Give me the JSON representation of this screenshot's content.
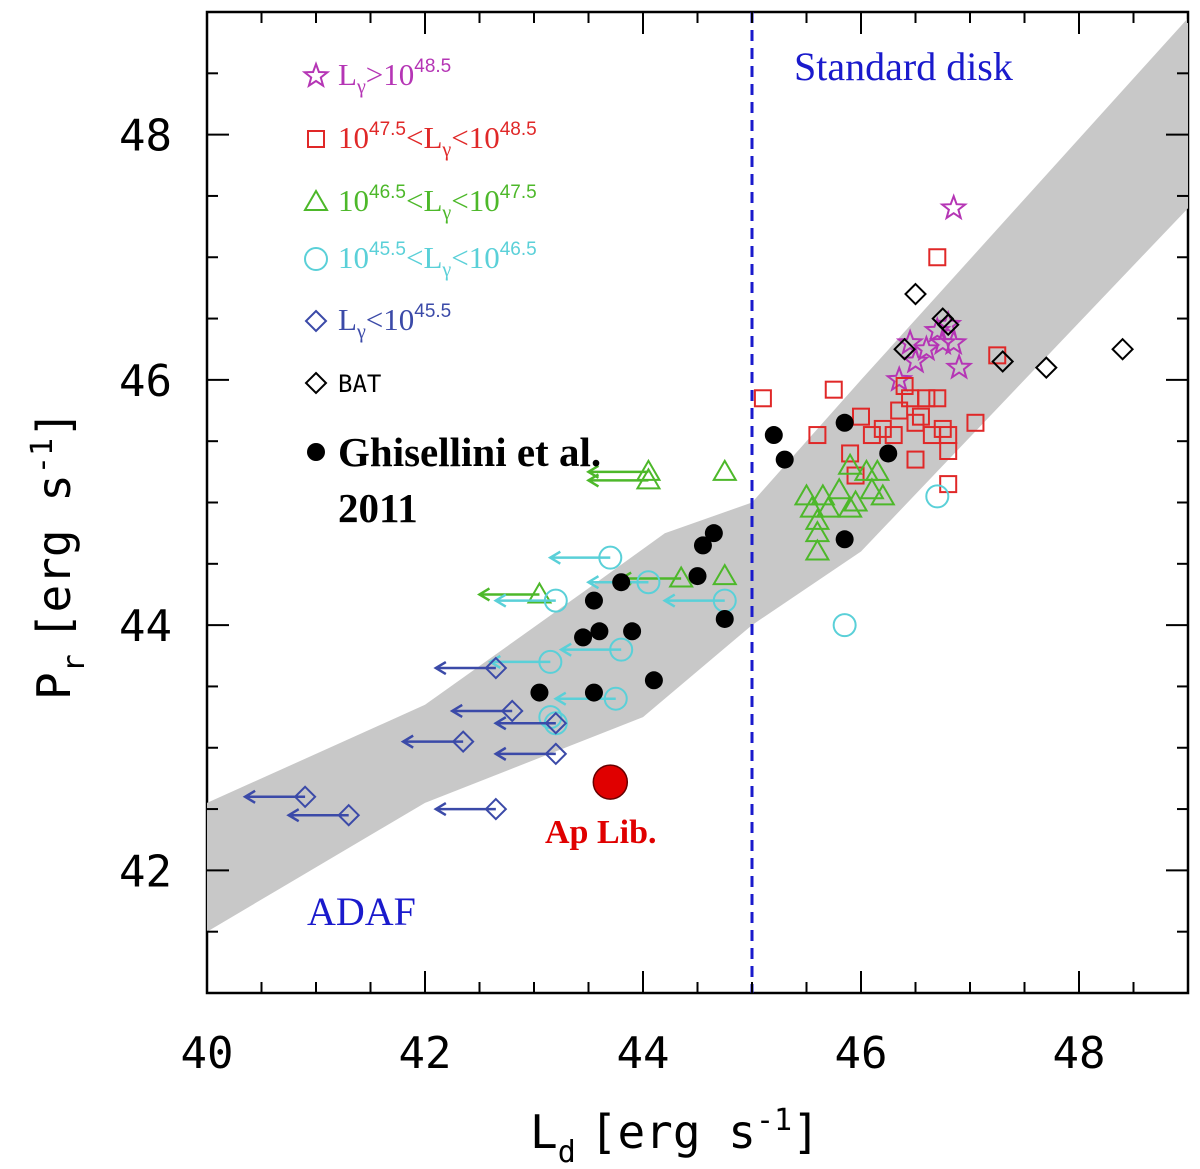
{
  "chart_data": {
    "type": "scatter",
    "xlabel": {
      "main": "L",
      "sub": "d",
      "unit": "[erg s",
      "exp": "-1",
      "close": "]"
    },
    "ylabel": {
      "main": "P",
      "sub": "r",
      "unit": "[erg s",
      "exp": "-1",
      "close": "]"
    },
    "xlim": [
      40,
      49
    ],
    "ylim": [
      41,
      49
    ],
    "xticks": [
      "40",
      "42",
      "44",
      "46",
      "48"
    ],
    "yticks": [
      "42",
      "44",
      "46",
      "48"
    ],
    "divider_x": 45,
    "region_labels": {
      "left": "ADAF",
      "right": "Standard disk"
    },
    "band": {
      "upper": [
        [
          40,
          42.55
        ],
        [
          42,
          43.35
        ],
        [
          43.5,
          44.3
        ],
        [
          44.2,
          44.75
        ],
        [
          45,
          45.0
        ],
        [
          46,
          46.0
        ],
        [
          49,
          48.95
        ]
      ],
      "lower": [
        [
          49,
          47.4
        ],
        [
          46,
          44.6
        ],
        [
          45,
          44.0
        ],
        [
          44,
          43.25
        ],
        [
          42,
          42.55
        ],
        [
          40,
          41.5
        ]
      ]
    },
    "series": [
      {
        "key": "gt485",
        "marker": "star",
        "color": "#b535b5",
        "legend": {
          "pre": "L",
          "sub": "γ",
          "mid": ">10",
          "sup": "48.5",
          "post": ""
        },
        "points": [
          [
            46.85,
            47.4
          ],
          [
            46.45,
            46.3
          ],
          [
            46.5,
            46.15
          ],
          [
            46.6,
            46.25
          ],
          [
            46.7,
            46.4
          ],
          [
            46.75,
            46.3
          ],
          [
            46.8,
            46.45
          ],
          [
            46.85,
            46.3
          ],
          [
            46.9,
            46.1
          ],
          [
            46.35,
            46.0
          ]
        ]
      },
      {
        "key": "b475",
        "marker": "square",
        "color": "#e02828",
        "legend": {
          "pre": "10",
          "presup": "47.5",
          "mid": "<L",
          "sub": "γ",
          "mid2": "<10",
          "sup": "48.5",
          "post": ""
        },
        "points": [
          [
            45.1,
            45.85
          ],
          [
            45.6,
            45.55
          ],
          [
            45.75,
            45.92
          ],
          [
            45.9,
            45.4
          ],
          [
            45.95,
            45.22
          ],
          [
            46.0,
            45.7
          ],
          [
            46.1,
            45.55
          ],
          [
            46.2,
            45.6
          ],
          [
            46.3,
            45.55
          ],
          [
            46.35,
            45.75
          ],
          [
            46.4,
            45.95
          ],
          [
            46.45,
            45.85
          ],
          [
            46.5,
            45.65
          ],
          [
            46.55,
            45.7
          ],
          [
            46.6,
            45.85
          ],
          [
            46.65,
            45.55
          ],
          [
            46.7,
            45.85
          ],
          [
            46.75,
            45.6
          ],
          [
            46.8,
            45.55
          ],
          [
            46.8,
            45.42
          ],
          [
            46.5,
            45.35
          ],
          [
            46.8,
            45.15
          ],
          [
            47.05,
            45.65
          ],
          [
            47.25,
            46.2
          ],
          [
            46.7,
            47.0
          ]
        ]
      },
      {
        "key": "b465",
        "marker": "triangle",
        "color": "#4db82a",
        "legend": {
          "pre": "10",
          "presup": "46.5",
          "mid": "<L",
          "sub": "γ",
          "mid2": "<10",
          "sup": "47.5",
          "post": ""
        },
        "upper_limit_x": [
          [
            44.05,
            45.25
          ],
          [
            44.05,
            45.18
          ],
          [
            43.05,
            44.25
          ],
          [
            44.35,
            44.38
          ]
        ],
        "points": [
          [
            44.75,
            44.4
          ],
          [
            44.75,
            45.25
          ],
          [
            45.5,
            45.05
          ],
          [
            45.55,
            44.95
          ],
          [
            45.6,
            44.85
          ],
          [
            45.65,
            45.05
          ],
          [
            45.7,
            44.95
          ],
          [
            45.6,
            44.75
          ],
          [
            45.6,
            44.6
          ],
          [
            45.8,
            45.1
          ],
          [
            45.9,
            45.3
          ],
          [
            45.95,
            45.0
          ],
          [
            46.05,
            45.25
          ],
          [
            46.1,
            45.1
          ],
          [
            46.2,
            45.05
          ],
          [
            46.15,
            45.25
          ],
          [
            45.9,
            44.95
          ]
        ]
      },
      {
        "key": "b455",
        "marker": "circle",
        "color": "#5ad0d8",
        "legend": {
          "pre": "10",
          "presup": "45.5",
          "mid": "<L",
          "sub": "γ",
          "mid2": "<10",
          "sup": "46.5",
          "post": ""
        },
        "upper_limit_x": [
          [
            43.7,
            44.55
          ],
          [
            43.2,
            44.2
          ],
          [
            43.15,
            43.7
          ],
          [
            43.2,
            43.2
          ],
          [
            43.8,
            43.8
          ],
          [
            43.75,
            43.4
          ],
          [
            44.75,
            44.2
          ],
          [
            44.05,
            44.35
          ]
        ],
        "points": [
          [
            45.85,
            44.0
          ],
          [
            46.7,
            45.05
          ],
          [
            43.15,
            43.25
          ]
        ]
      },
      {
        "key": "lt455",
        "marker": "diamond",
        "color": "#3b4aa8",
        "legend": {
          "pre": "L",
          "sub": "γ",
          "mid": "<10",
          "sup": "45.5",
          "post": ""
        },
        "upper_limit_x": [
          [
            40.9,
            42.6
          ],
          [
            41.3,
            42.45
          ],
          [
            42.35,
            43.05
          ],
          [
            42.65,
            43.65
          ],
          [
            42.8,
            43.3
          ],
          [
            43.2,
            43.2
          ],
          [
            43.2,
            42.95
          ],
          [
            42.65,
            42.5
          ]
        ]
      },
      {
        "key": "bat",
        "marker": "diamond",
        "color": "#000000",
        "legend": {
          "pre": "BAT"
        },
        "points": [
          [
            46.5,
            46.7
          ],
          [
            46.75,
            46.5
          ],
          [
            46.8,
            46.45
          ],
          [
            46.4,
            46.25
          ],
          [
            47.3,
            46.15
          ],
          [
            47.7,
            46.1
          ],
          [
            48.4,
            46.25
          ]
        ]
      },
      {
        "key": "ghis",
        "marker": "filled-circle",
        "color": "#000000",
        "legend": {
          "pre": "Ghisellini et al.",
          "line2": "2011"
        },
        "points": [
          [
            43.05,
            43.45
          ],
          [
            43.45,
            43.9
          ],
          [
            43.55,
            43.45
          ],
          [
            43.55,
            44.2
          ],
          [
            43.6,
            43.95
          ],
          [
            43.8,
            44.35
          ],
          [
            43.9,
            43.95
          ],
          [
            44.1,
            43.55
          ],
          [
            44.5,
            44.4
          ],
          [
            44.55,
            44.65
          ],
          [
            44.65,
            44.75
          ],
          [
            44.75,
            44.05
          ],
          [
            45.2,
            45.55
          ],
          [
            45.3,
            45.35
          ],
          [
            45.85,
            45.65
          ],
          [
            45.85,
            44.7
          ],
          [
            46.25,
            45.4
          ]
        ]
      },
      {
        "key": "aplib",
        "marker": "big-filled-circle",
        "color": "#e00000",
        "label": "Ap Lib.",
        "points": [
          [
            43.7,
            42.72
          ]
        ]
      }
    ]
  }
}
